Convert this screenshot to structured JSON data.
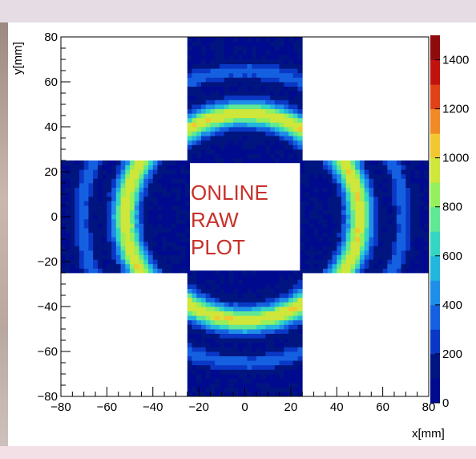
{
  "chart_data": {
    "type": "heatmap",
    "xlabel": "x[mm]",
    "ylabel": "y[mm]",
    "xlim": [
      -80,
      80
    ],
    "ylim": [
      -80,
      80
    ],
    "x_ticks": [
      "−80",
      "−60",
      "−40",
      "−20",
      "0",
      "20",
      "40",
      "60",
      "80"
    ],
    "y_ticks": [
      "80",
      "60",
      "40",
      "20",
      "0",
      "−20",
      "−40",
      "−60",
      "−80"
    ],
    "colorbar": {
      "range": [
        0,
        1500
      ],
      "ticks": [
        "1400",
        "1200",
        "1000",
        "800",
        "600",
        "400",
        "200",
        "0"
      ],
      "palette": [
        "#000a8f",
        "#00157f",
        "#0a37c5",
        "#1560e0",
        "#1e8ee8",
        "#22b6dc",
        "#32d6c2",
        "#60e894",
        "#96ef5c",
        "#cfe63a",
        "#f1c832",
        "#f08a24",
        "#e04218",
        "#c1120e",
        "#8e0c0c"
      ]
    },
    "modules": [
      {
        "name": "top",
        "x_range": [
          -25,
          25
        ],
        "y_range": [
          24,
          80
        ]
      },
      {
        "name": "bottom",
        "x_range": [
          -25,
          25
        ],
        "y_range": [
          -80,
          -24
        ]
      },
      {
        "name": "left",
        "x_range": [
          -80,
          -24
        ],
        "y_range": [
          -25,
          25
        ]
      },
      {
        "name": "right",
        "x_range": [
          24,
          80
        ],
        "y_range": [
          -25,
          25
        ]
      }
    ],
    "annotation": [
      "ONLINE",
      "RAW",
      "PLOT"
    ],
    "annotation_color": "#c8302a"
  }
}
